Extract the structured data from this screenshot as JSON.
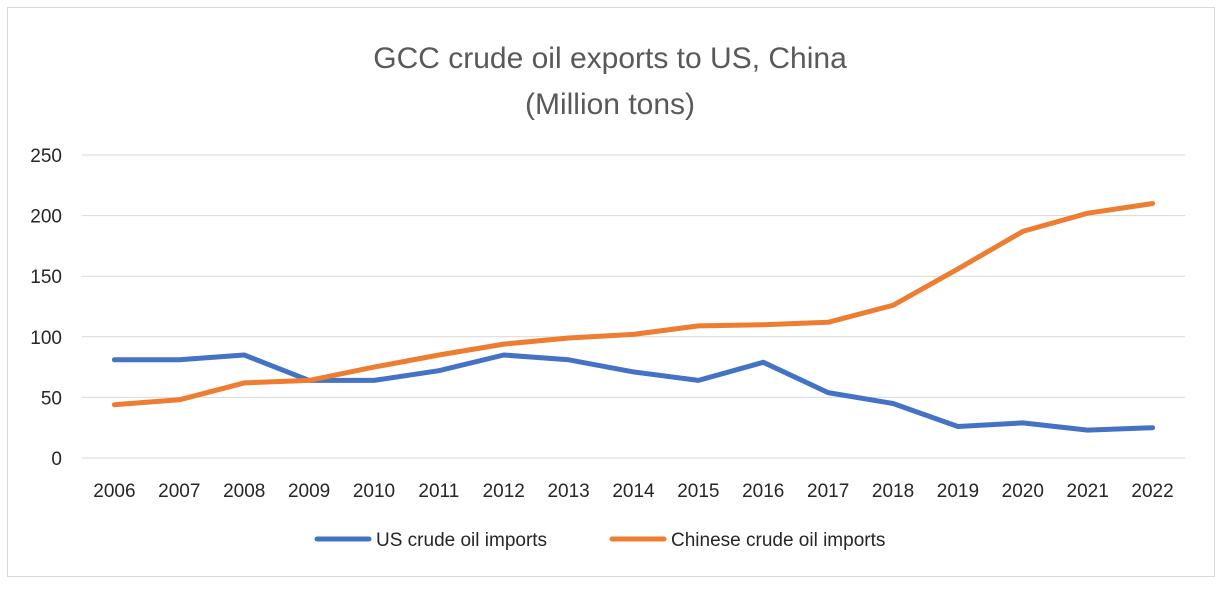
{
  "chart_data": {
    "type": "line",
    "title": "GCC crude oil exports to US, China",
    "subtitle": "(Million tons)",
    "xlabel": "",
    "ylabel": "",
    "categories": [
      "2006",
      "2007",
      "2008",
      "2009",
      "2010",
      "2011",
      "2012",
      "2013",
      "2014",
      "2015",
      "2016",
      "2017",
      "2018",
      "2019",
      "2020",
      "2021",
      "2022"
    ],
    "ylim": [
      0,
      250
    ],
    "yticks": [
      0,
      50,
      100,
      150,
      200,
      250
    ],
    "grid": true,
    "legend_position": "bottom",
    "series": [
      {
        "name": "US crude oil imports",
        "color": "#4472C4",
        "values": [
          81,
          81,
          85,
          64,
          64,
          72,
          85,
          81,
          71,
          64,
          79,
          54,
          45,
          26,
          29,
          23,
          25
        ]
      },
      {
        "name": "Chinese crude oil imports",
        "color": "#ED7D31",
        "values": [
          44,
          48,
          62,
          64,
          75,
          85,
          94,
          99,
          102,
          109,
          110,
          112,
          126,
          156,
          187,
          202,
          210
        ]
      }
    ]
  }
}
